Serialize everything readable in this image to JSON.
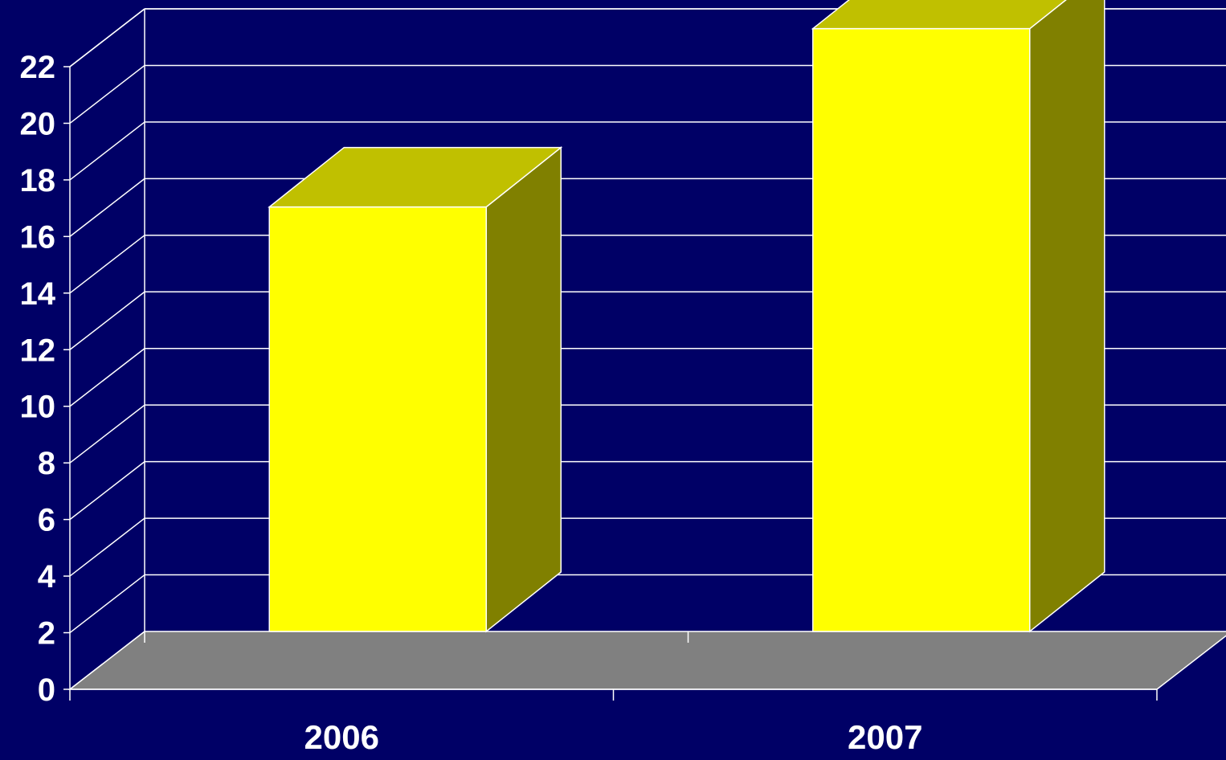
{
  "chart_data": {
    "type": "bar",
    "style": "3d",
    "categories": [
      "2006",
      "2007"
    ],
    "values": [
      15,
      21.3
    ],
    "ylim": [
      0,
      22
    ],
    "yticks": [
      0,
      2,
      4,
      6,
      8,
      10,
      12,
      14,
      16,
      18,
      20,
      22
    ],
    "title": "",
    "xlabel": "",
    "ylabel": "",
    "grid": true,
    "legend": "none",
    "colors": {
      "background": "#000066",
      "bar_front": "#ffff00",
      "bar_top": "#c0c000",
      "bar_side": "#808000",
      "floor": "#808080",
      "grid": "#ffffff",
      "text": "#ffffff"
    }
  }
}
